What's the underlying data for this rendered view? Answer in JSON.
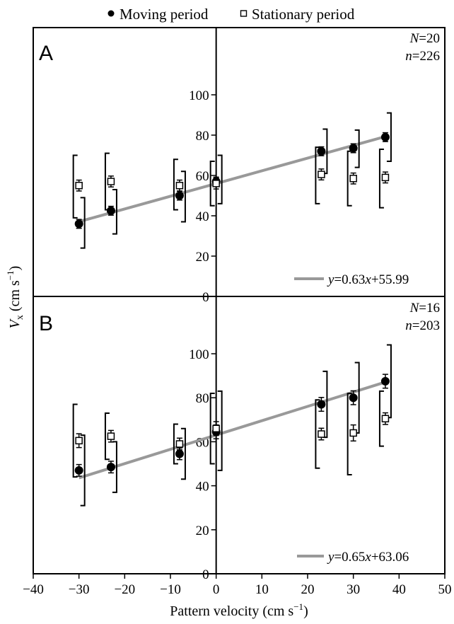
{
  "legend": {
    "moving_label": "Moving period",
    "stationary_label": "Stationary period",
    "placement": "top-center"
  },
  "axes": {
    "xlabel_prefix": "Pattern velocity (cm s",
    "xlabel_sup": "−1",
    "xlabel_suffix": ")",
    "ylabel_main": "V",
    "ylabel_sub": "x",
    "ylabel_units_prefix": " (cm s",
    "ylabel_units_sup": "−1",
    "ylabel_units_suffix": ")",
    "xlim": [
      -40,
      50
    ],
    "xticks": [
      -40,
      -30,
      -20,
      -10,
      0,
      10,
      20,
      30,
      40,
      50
    ],
    "ylim": [
      0,
      120
    ],
    "yticks": [
      0,
      20,
      40,
      60,
      80,
      100
    ]
  },
  "colors": {
    "moving": "#000000",
    "stationary": "#ffffff",
    "regression": "#999999"
  },
  "chart_data": [
    {
      "type": "scatter",
      "panel": "A",
      "stats": {
        "N_label": "N",
        "N_value": "=20",
        "n_label": "n",
        "n_value": "=226"
      },
      "equation": {
        "y": "y",
        "eq1": "=0.63",
        "x": "x",
        "eq2": "+55.99"
      },
      "regression": {
        "slope": 0.63,
        "intercept": 55.99,
        "x_range": [
          -30,
          37
        ]
      },
      "series": [
        {
          "name": "Moving period",
          "points": [
            {
              "x": -30,
              "y": 36,
              "err": 1.5,
              "sd_lo": 24,
              "sd_hi": 49
            },
            {
              "x": -23,
              "y": 42.5,
              "err": 1.5,
              "sd_lo": 31,
              "sd_hi": 53
            },
            {
              "x": -8,
              "y": 50,
              "err": 1.5,
              "sd_lo": 37,
              "sd_hi": 62
            },
            {
              "x": 0,
              "y": 57,
              "err": 1.5,
              "sd_lo": 46,
              "sd_hi": 70
            },
            {
              "x": 23,
              "y": 72,
              "err": 1.5,
              "sd_lo": 61,
              "sd_hi": 83
            },
            {
              "x": 30,
              "y": 73.5,
              "err": 1.5,
              "sd_lo": 64,
              "sd_hi": 82.5
            },
            {
              "x": 37,
              "y": 79,
              "err": 1.5,
              "sd_lo": 67,
              "sd_hi": 91
            }
          ]
        },
        {
          "name": "Stationary period",
          "points": [
            {
              "x": -30,
              "y": 55,
              "err": 2,
              "sd_lo": 39,
              "sd_hi": 70
            },
            {
              "x": -23,
              "y": 57,
              "err": 2,
              "sd_lo": 43,
              "sd_hi": 71
            },
            {
              "x": -8,
              "y": 55,
              "err": 2,
              "sd_lo": 43,
              "sd_hi": 68
            },
            {
              "x": 0,
              "y": 56,
              "err": 2,
              "sd_lo": 45,
              "sd_hi": 67
            },
            {
              "x": 23,
              "y": 60.5,
              "err": 2,
              "sd_lo": 46,
              "sd_hi": 74
            },
            {
              "x": 30,
              "y": 58.5,
              "err": 2,
              "sd_lo": 45,
              "sd_hi": 72
            },
            {
              "x": 37,
              "y": 59,
              "err": 2,
              "sd_lo": 44,
              "sd_hi": 73
            }
          ]
        }
      ]
    },
    {
      "type": "scatter",
      "panel": "B",
      "stats": {
        "N_label": "N",
        "N_value": "=16",
        "n_label": "n",
        "n_value": "=203"
      },
      "equation": {
        "y": "y",
        "eq1": "=0.65",
        "x": "x",
        "eq2": "+63.06"
      },
      "regression": {
        "slope": 0.65,
        "intercept": 63.06,
        "x_range": [
          -30,
          37
        ]
      },
      "series": [
        {
          "name": "Moving period",
          "points": [
            {
              "x": -30,
              "y": 47,
              "err": 2,
              "sd_lo": 31,
              "sd_hi": 63
            },
            {
              "x": -23,
              "y": 48.5,
              "err": 2,
              "sd_lo": 37,
              "sd_hi": 60
            },
            {
              "x": -8,
              "y": 54.5,
              "err": 2,
              "sd_lo": 43,
              "sd_hi": 66
            },
            {
              "x": 0,
              "y": 64.5,
              "err": 2.5,
              "sd_lo": 47,
              "sd_hi": 83
            },
            {
              "x": 23,
              "y": 77,
              "err": 2.5,
              "sd_lo": 62,
              "sd_hi": 92
            },
            {
              "x": 30,
              "y": 80,
              "err": 2.5,
              "sd_lo": 64,
              "sd_hi": 96
            },
            {
              "x": 37,
              "y": 87.5,
              "err": 2.5,
              "sd_lo": 71,
              "sd_hi": 104
            }
          ]
        },
        {
          "name": "Stationary period",
          "points": [
            {
              "x": -30,
              "y": 60.5,
              "err": 2.5,
              "sd_lo": 44,
              "sd_hi": 77
            },
            {
              "x": -23,
              "y": 62.5,
              "err": 2,
              "sd_lo": 52,
              "sd_hi": 73
            },
            {
              "x": -8,
              "y": 59,
              "err": 2,
              "sd_lo": 50,
              "sd_hi": 68
            },
            {
              "x": 0,
              "y": 66,
              "err": 2.5,
              "sd_lo": 50,
              "sd_hi": 82
            },
            {
              "x": 23,
              "y": 63.5,
              "err": 2,
              "sd_lo": 48,
              "sd_hi": 79
            },
            {
              "x": 30,
              "y": 64,
              "err": 3,
              "sd_lo": 45,
              "sd_hi": 82
            },
            {
              "x": 37,
              "y": 70.5,
              "err": 2,
              "sd_lo": 58,
              "sd_hi": 83
            }
          ]
        }
      ]
    }
  ]
}
